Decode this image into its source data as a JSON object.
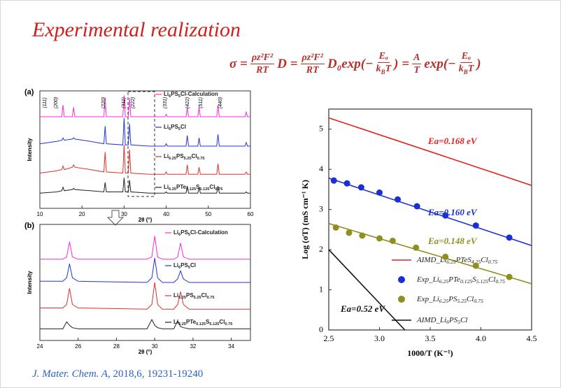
{
  "title": "Experimental realization",
  "equation": {
    "parts": [
      "σ =",
      {
        "num": "ρz²F²",
        "den": "RT"
      },
      "D =",
      {
        "num": "ρz²F²",
        "den": "RT"
      },
      "D₀exp(−",
      {
        "num": "Eₐ",
        "den": "kBT"
      },
      ") =",
      {
        "num": "A",
        "den": "T"
      },
      "exp(−",
      {
        "num": "Eₐ",
        "den": "kBT"
      },
      ")"
    ]
  },
  "citation": {
    "journal": "J. Mater. Chem. A",
    "details": ", 2018,6, 19231-19240"
  },
  "chart_data": [
    {
      "type": "line",
      "panel": "(a)",
      "x_label": "2θ (°)",
      "y_label": "Intensity",
      "xlim": [
        10,
        60
      ],
      "xticks": [
        10,
        20,
        30,
        40,
        50,
        60
      ],
      "ylim": [
        0,
        100
      ],
      "annotations": [
        "(111)",
        "(200)",
        "(220)",
        "(311)",
        "(222)",
        "(331)",
        "(422)",
        "(511)",
        "(440)"
      ],
      "x": [
        10,
        14,
        15.2,
        15.5,
        15.8,
        17.7,
        18,
        18.3,
        22,
        25.2,
        25.5,
        25.8,
        29.7,
        30,
        30.3,
        31,
        31.3,
        31.6,
        36,
        39.7,
        40,
        40.3,
        44.7,
        45,
        45.3,
        47.5,
        47.8,
        48.1,
        52,
        52.3,
        52.6,
        55,
        58.7,
        59,
        59.3,
        60
      ],
      "series": [
        {
          "name": "Li6PS5Cl-Calculation",
          "color": "#ff2bd6",
          "values": [
            78,
            78,
            78,
            88,
            78,
            78,
            86,
            78,
            78,
            78,
            94,
            78,
            78,
            96,
            78,
            78,
            94,
            78,
            78,
            78,
            80,
            78,
            78,
            86,
            78,
            78,
            86,
            78,
            78,
            88,
            78,
            78,
            78,
            82,
            78,
            78
          ]
        },
        {
          "name": "Li6PS5Cl",
          "color": "#2233dd",
          "values": [
            55,
            57,
            58,
            60,
            58,
            59,
            60,
            59,
            57,
            55,
            70,
            55,
            54,
            77,
            54,
            54,
            72,
            54,
            53,
            53,
            55,
            53,
            53,
            62,
            53,
            53,
            60,
            53,
            53,
            63,
            53,
            53,
            53,
            56,
            53,
            53
          ]
        },
        {
          "name": "Li6.25PS5.25Cl0.75",
          "color": "#e0302a",
          "values": [
            30,
            32,
            33,
            36,
            33,
            35,
            37,
            35,
            33,
            31,
            48,
            31,
            30,
            54,
            30,
            30,
            50,
            30,
            29,
            29,
            31,
            29,
            29,
            37,
            29,
            29,
            35,
            29,
            29,
            38,
            29,
            29,
            29,
            31,
            29,
            29
          ]
        },
        {
          "name": "Li6.25PTe0.125S5.125Cl0.75",
          "color": "#222222",
          "values": [
            13,
            14,
            15,
            18,
            15,
            16,
            17,
            16,
            15,
            14,
            22,
            14,
            14,
            26,
            14,
            14,
            24,
            14,
            13,
            13,
            14,
            13,
            13,
            19,
            13,
            13,
            18,
            13,
            13,
            19,
            13,
            13,
            13,
            14,
            13,
            13
          ]
        }
      ]
    },
    {
      "type": "line",
      "panel": "(b)",
      "x_label": "2θ (°)",
      "y_label": "Intensity",
      "xlim": [
        24,
        35
      ],
      "xticks": [
        24,
        26,
        28,
        30,
        32,
        34
      ],
      "ylim": [
        0,
        100
      ],
      "x": [
        24,
        25.2,
        25.4,
        25.55,
        25.7,
        26,
        29.6,
        29.85,
        30,
        30.15,
        30.4,
        31,
        31.2,
        31.35,
        31.5,
        31.8,
        35
      ],
      "series": [
        {
          "name": "Li6PS5Cl-Calculation",
          "color": "#ff2bd6",
          "values": [
            70,
            70,
            72,
            85,
            72,
            70,
            70,
            72,
            90,
            72,
            70,
            70,
            72,
            84,
            72,
            70,
            70
          ]
        },
        {
          "name": "Li6PS5Cl",
          "color": "#2233dd",
          "values": [
            51,
            51,
            54,
            66,
            54,
            51,
            50,
            54,
            71,
            54,
            50,
            50,
            53,
            60,
            53,
            50,
            50
          ]
        },
        {
          "name": "Li6.25PS5.25Cl0.75",
          "color": "#e0302a",
          "values": [
            28,
            28,
            31,
            45,
            31,
            28,
            27,
            31,
            50,
            31,
            27,
            27,
            31,
            42,
            31,
            27,
            27
          ]
        },
        {
          "name": "Li6.25PTe0.125S5.125Cl0.75",
          "color": "#222222",
          "values": [
            10,
            10,
            16,
            13,
            11,
            10,
            10,
            18,
            13,
            11,
            10,
            10,
            17,
            12,
            11,
            10,
            10
          ]
        }
      ]
    },
    {
      "type": "scatter",
      "x_label": "1000/T (K⁻¹)",
      "y_label": "Log (σT) (mS cm⁻¹ K)",
      "xlim": [
        2.5,
        4.5
      ],
      "xticks": [
        2.5,
        {
          "value": 3,
          "label": "3.0"
        },
        3.5,
        {
          "value": 4,
          "label": "4.0"
        },
        4.5
      ],
      "ylim": [
        0,
        5.5
      ],
      "yticks": [
        0,
        1,
        2,
        3,
        4,
        5
      ],
      "annotations": [
        "Ea=0.168 eV",
        "Ea=0.160 eV",
        "Ea=0.148 eV",
        "Ea=0.52 eV"
      ],
      "series": [
        {
          "name": "AIMD_Li6.25PTeS4.25Cl0.75",
          "color": "#e82020",
          "marker": false,
          "x": [
            2.5,
            4.5
          ],
          "values": [
            5.28,
            3.6
          ]
        },
        {
          "name": "Exp_Li6.25PTe0.125S5.125Cl0.75",
          "color": "#1a2fd6",
          "marker": true,
          "x": [
            2.55,
            2.68,
            2.82,
            3.0,
            3.18,
            3.37,
            3.65,
            3.95,
            4.28
          ],
          "values": [
            3.72,
            3.65,
            3.55,
            3.42,
            3.25,
            3.08,
            2.85,
            2.6,
            2.3
          ],
          "fit": {
            "x": [
              2.5,
              4.5
            ],
            "values": [
              3.78,
              2.1
            ]
          }
        },
        {
          "name": "Exp_Li6.25PS5.25Cl0.75",
          "color": "#8f8f1f",
          "marker": true,
          "x": [
            2.57,
            2.7,
            2.83,
            3.0,
            3.13,
            3.36,
            3.65,
            3.95,
            4.28
          ],
          "values": [
            2.55,
            2.42,
            2.35,
            2.28,
            2.22,
            2.05,
            1.82,
            1.6,
            1.32
          ],
          "fit": {
            "x": [
              2.5,
              4.5
            ],
            "values": [
              2.65,
              1.15
            ]
          }
        },
        {
          "name": "AIMD_Li6PS5Cl",
          "color": "#111111",
          "marker": false,
          "x": [
            2.5,
            3.25
          ],
          "values": [
            2.0,
            0
          ]
        }
      ]
    }
  ]
}
